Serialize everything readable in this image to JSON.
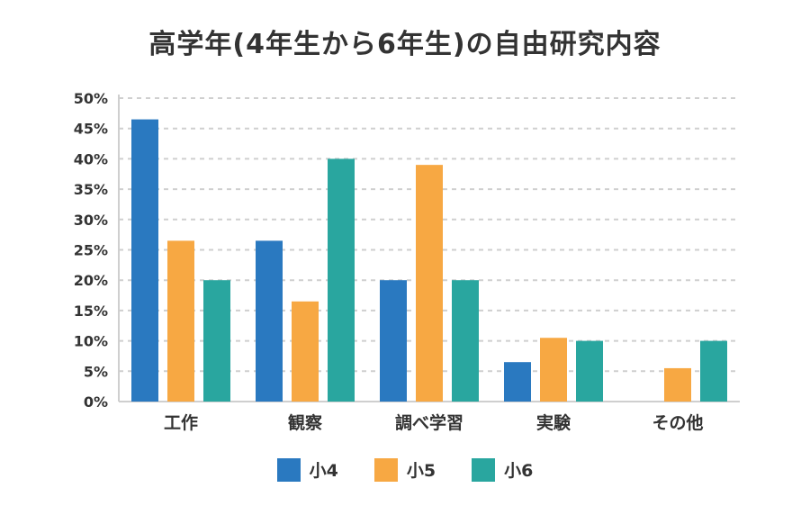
{
  "chart_data": {
    "type": "bar",
    "title": "高学年(4年生から6年生)の自由研究内容",
    "categories": [
      "工作",
      "観察",
      "調べ学習",
      "実験",
      "その他"
    ],
    "series": [
      {
        "name": "小4",
        "color": "#2a79c0",
        "values": [
          46.5,
          26.5,
          20,
          6.5,
          0
        ]
      },
      {
        "name": "小5",
        "color": "#f7a843",
        "values": [
          26.5,
          16.5,
          39,
          10.5,
          5.5
        ]
      },
      {
        "name": "小6",
        "color": "#29a69f",
        "values": [
          20,
          40,
          20,
          10,
          10
        ]
      }
    ],
    "y_ticks": [
      "0%",
      "5%",
      "10%",
      "15%",
      "20%",
      "25%",
      "30%",
      "35%",
      "40%",
      "45%",
      "50%"
    ],
    "ylim": [
      0,
      50
    ],
    "ylabel": "",
    "xlabel": "",
    "grid": true,
    "legend_position": "bottom"
  }
}
